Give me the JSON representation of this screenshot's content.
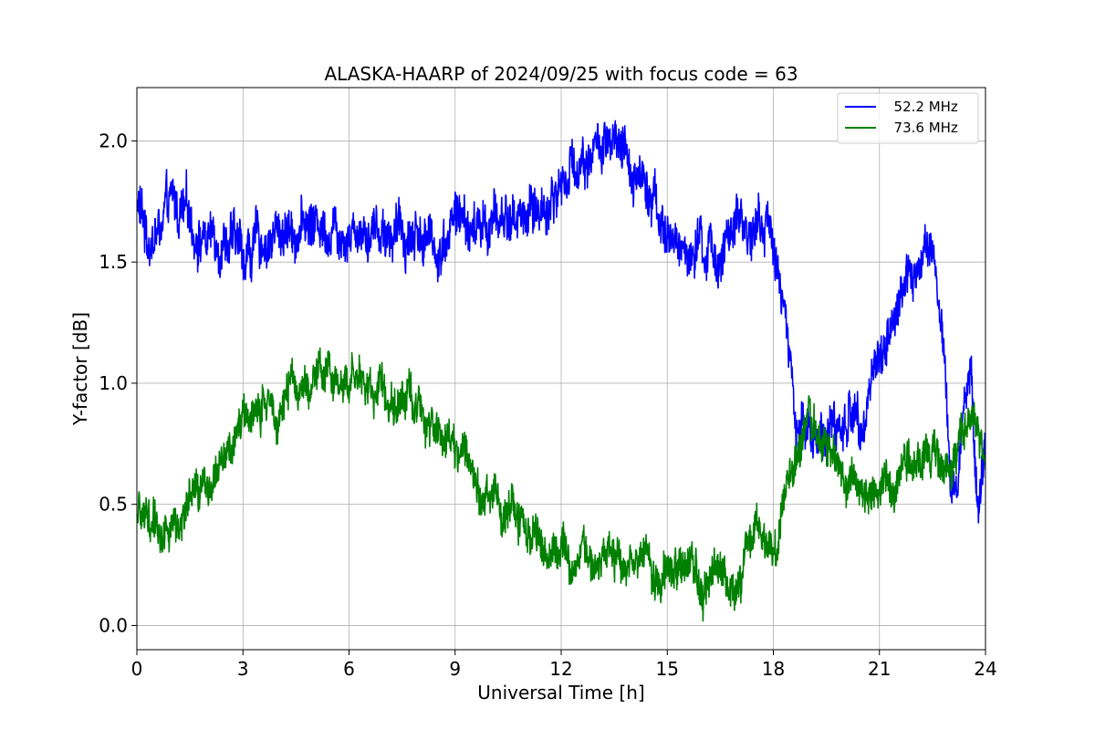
{
  "chart_data": {
    "type": "line",
    "title": "ALASKA-HAARP of 2024/09/25 with focus code = 63",
    "xlabel": "Universal Time [h]",
    "ylabel": "Y-factor [dB]",
    "xlim": [
      0,
      24
    ],
    "ylim": [
      -0.1,
      2.22
    ],
    "xticks": [
      0,
      3,
      6,
      9,
      12,
      15,
      18,
      21,
      24
    ],
    "xtick_labels": [
      "0",
      "3",
      "6",
      "9",
      "12",
      "15",
      "18",
      "21",
      "24"
    ],
    "yticks": [
      0.0,
      0.5,
      1.0,
      1.5,
      2.0
    ],
    "ytick_labels": [
      "0.0",
      "0.5",
      "1.0",
      "1.5",
      "2.0"
    ],
    "grid": true,
    "legend_position": "top-right",
    "series": [
      {
        "name": "  52.2 MHz",
        "color": "#0000ff",
        "noise": 0.13,
        "x": [
          0,
          0.3,
          0.6,
          1.0,
          1.5,
          2.0,
          2.5,
          3.0,
          3.5,
          4.0,
          4.5,
          5.0,
          5.5,
          6.0,
          6.5,
          7.0,
          7.5,
          8.0,
          8.5,
          9.0,
          9.5,
          10.0,
          10.5,
          11.0,
          11.5,
          12.0,
          12.5,
          13.0,
          13.5,
          14.0,
          14.5,
          15.0,
          15.5,
          16.0,
          16.5,
          17.0,
          17.5,
          18.0,
          18.3,
          18.6,
          19.0,
          19.5,
          20.0,
          20.5,
          21.0,
          21.5,
          22.0,
          22.3,
          22.6,
          22.8,
          23.0,
          23.2,
          23.4,
          23.6,
          23.8,
          24.0
        ],
        "y": [
          1.75,
          1.6,
          1.62,
          1.72,
          1.66,
          1.6,
          1.62,
          1.53,
          1.58,
          1.62,
          1.65,
          1.66,
          1.66,
          1.65,
          1.66,
          1.64,
          1.62,
          1.63,
          1.55,
          1.7,
          1.62,
          1.66,
          1.68,
          1.7,
          1.72,
          1.82,
          1.92,
          1.98,
          1.94,
          1.88,
          1.86,
          1.58,
          1.55,
          1.52,
          1.54,
          1.62,
          1.66,
          1.62,
          1.3,
          0.85,
          0.8,
          0.8,
          0.83,
          0.9,
          1.1,
          1.32,
          1.45,
          1.55,
          1.48,
          1.1,
          0.6,
          0.55,
          0.95,
          1.05,
          0.45,
          0.8
        ]
      },
      {
        "name": "  73.6 MHz",
        "color": "#008000",
        "noise": 0.11,
        "x": [
          0,
          0.3,
          0.6,
          1.0,
          1.5,
          2.0,
          2.5,
          3.0,
          3.5,
          4.0,
          4.5,
          5.0,
          5.5,
          6.0,
          6.5,
          7.0,
          7.5,
          8.0,
          8.5,
          9.0,
          9.5,
          10.0,
          10.5,
          11.0,
          11.5,
          12.0,
          12.5,
          13.0,
          13.5,
          14.0,
          14.5,
          15.0,
          15.5,
          16.0,
          16.5,
          17.0,
          17.5,
          18.0,
          18.5,
          19.0,
          19.5,
          20.0,
          20.5,
          21.0,
          21.5,
          22.0,
          22.5,
          23.0,
          23.3,
          23.6,
          24.0
        ],
        "y": [
          0.42,
          0.45,
          0.4,
          0.4,
          0.48,
          0.58,
          0.68,
          0.85,
          0.88,
          0.92,
          0.98,
          1.02,
          1.02,
          1.02,
          1.0,
          0.98,
          0.94,
          0.9,
          0.85,
          0.72,
          0.65,
          0.55,
          0.48,
          0.4,
          0.35,
          0.32,
          0.3,
          0.28,
          0.28,
          0.27,
          0.25,
          0.22,
          0.2,
          0.18,
          0.2,
          0.18,
          0.45,
          0.28,
          0.65,
          0.78,
          0.7,
          0.62,
          0.58,
          0.52,
          0.58,
          0.65,
          0.72,
          0.62,
          0.8,
          0.82,
          0.72
        ]
      }
    ]
  }
}
